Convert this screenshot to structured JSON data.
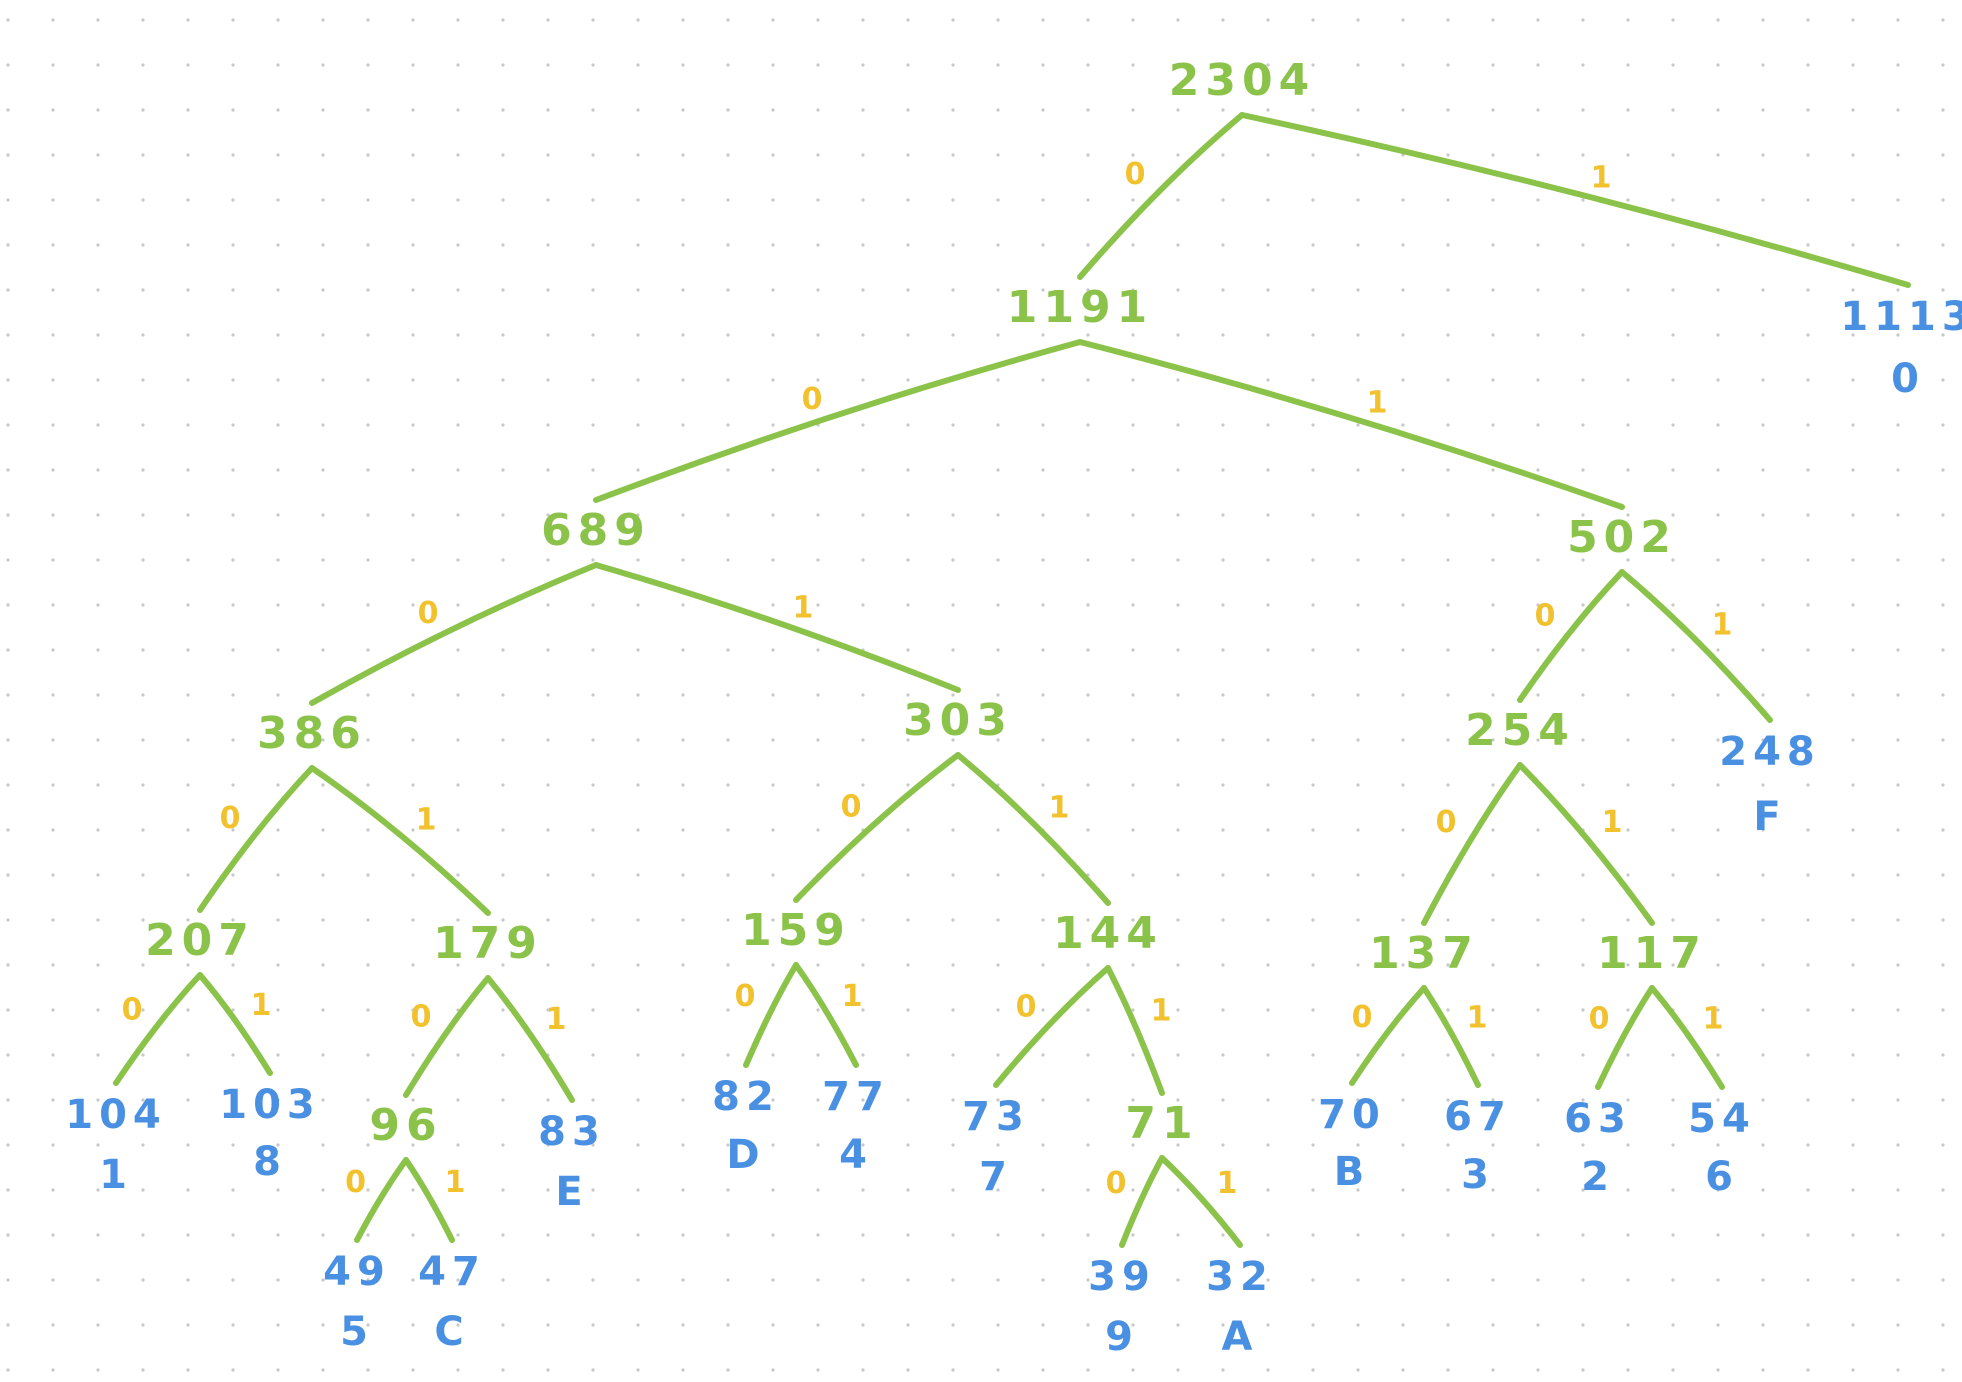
{
  "diagram": {
    "colors": {
      "internal_node": "#8bc34a",
      "leaf": "#4a90e2",
      "edge_bit": "#f2c12e",
      "grid_dot": "#c8c8c8",
      "background": "#ffffff"
    },
    "nodes": [
      {
        "id": "n2304",
        "value": "2304",
        "kind": "internal"
      },
      {
        "id": "n1191",
        "value": "1191",
        "kind": "internal"
      },
      {
        "id": "n1113",
        "value": "1113",
        "symbol": "0",
        "kind": "leaf"
      },
      {
        "id": "n689",
        "value": "689",
        "kind": "internal"
      },
      {
        "id": "n502",
        "value": "502",
        "kind": "internal"
      },
      {
        "id": "n386",
        "value": "386",
        "kind": "internal"
      },
      {
        "id": "n303",
        "value": "303",
        "kind": "internal"
      },
      {
        "id": "n254",
        "value": "254",
        "kind": "internal"
      },
      {
        "id": "n248",
        "value": "248",
        "symbol": "F",
        "kind": "leaf"
      },
      {
        "id": "n207",
        "value": "207",
        "kind": "internal"
      },
      {
        "id": "n179",
        "value": "179",
        "kind": "internal"
      },
      {
        "id": "n159",
        "value": "159",
        "kind": "internal"
      },
      {
        "id": "n144",
        "value": "144",
        "kind": "internal"
      },
      {
        "id": "n137",
        "value": "137",
        "kind": "internal"
      },
      {
        "id": "n117",
        "value": "117",
        "kind": "internal"
      },
      {
        "id": "n104",
        "value": "104",
        "symbol": "1",
        "kind": "leaf"
      },
      {
        "id": "n103",
        "value": "103",
        "symbol": "8",
        "kind": "leaf"
      },
      {
        "id": "n96",
        "value": "96",
        "kind": "internal"
      },
      {
        "id": "n83",
        "value": "83",
        "symbol": "E",
        "kind": "leaf"
      },
      {
        "id": "n82",
        "value": "82",
        "symbol": "D",
        "kind": "leaf"
      },
      {
        "id": "n77",
        "value": "77",
        "symbol": "4",
        "kind": "leaf"
      },
      {
        "id": "n73",
        "value": "73",
        "symbol": "7",
        "kind": "leaf"
      },
      {
        "id": "n71",
        "value": "71",
        "kind": "internal"
      },
      {
        "id": "n70",
        "value": "70",
        "symbol": "B",
        "kind": "leaf"
      },
      {
        "id": "n67",
        "value": "67",
        "symbol": "3",
        "kind": "leaf"
      },
      {
        "id": "n63",
        "value": "63",
        "symbol": "2",
        "kind": "leaf"
      },
      {
        "id": "n54",
        "value": "54",
        "symbol": "6",
        "kind": "leaf"
      },
      {
        "id": "n49",
        "value": "49",
        "symbol": "5",
        "kind": "leaf"
      },
      {
        "id": "n47",
        "value": "47",
        "symbol": "C",
        "kind": "leaf"
      },
      {
        "id": "n39",
        "value": "39",
        "symbol": "9",
        "kind": "leaf"
      },
      {
        "id": "n32",
        "value": "32",
        "symbol": "A",
        "kind": "leaf"
      }
    ],
    "edges": [
      {
        "from": "n2304",
        "to": "n1191",
        "bit": "0"
      },
      {
        "from": "n2304",
        "to": "n1113",
        "bit": "1"
      },
      {
        "from": "n1191",
        "to": "n689",
        "bit": "0"
      },
      {
        "from": "n1191",
        "to": "n502",
        "bit": "1"
      },
      {
        "from": "n689",
        "to": "n386",
        "bit": "0"
      },
      {
        "from": "n689",
        "to": "n303",
        "bit": "1"
      },
      {
        "from": "n502",
        "to": "n254",
        "bit": "0"
      },
      {
        "from": "n502",
        "to": "n248",
        "bit": "1"
      },
      {
        "from": "n386",
        "to": "n207",
        "bit": "0"
      },
      {
        "from": "n386",
        "to": "n179",
        "bit": "1"
      },
      {
        "from": "n303",
        "to": "n159",
        "bit": "0"
      },
      {
        "from": "n303",
        "to": "n144",
        "bit": "1"
      },
      {
        "from": "n254",
        "to": "n137",
        "bit": "0"
      },
      {
        "from": "n254",
        "to": "n117",
        "bit": "1"
      },
      {
        "from": "n207",
        "to": "n104",
        "bit": "0"
      },
      {
        "from": "n207",
        "to": "n103",
        "bit": "1"
      },
      {
        "from": "n179",
        "to": "n96",
        "bit": "0"
      },
      {
        "from": "n179",
        "to": "n83",
        "bit": "1"
      },
      {
        "from": "n159",
        "to": "n82",
        "bit": "0"
      },
      {
        "from": "n159",
        "to": "n77",
        "bit": "1"
      },
      {
        "from": "n144",
        "to": "n73",
        "bit": "0"
      },
      {
        "from": "n144",
        "to": "n71",
        "bit": "1"
      },
      {
        "from": "n137",
        "to": "n70",
        "bit": "0"
      },
      {
        "from": "n137",
        "to": "n67",
        "bit": "1"
      },
      {
        "from": "n117",
        "to": "n63",
        "bit": "0"
      },
      {
        "from": "n117",
        "to": "n54",
        "bit": "1"
      },
      {
        "from": "n96",
        "to": "n49",
        "bit": "0"
      },
      {
        "from": "n96",
        "to": "n47",
        "bit": "1"
      },
      {
        "from": "n71",
        "to": "n39",
        "bit": "0"
      },
      {
        "from": "n71",
        "to": "n32",
        "bit": "1"
      }
    ]
  }
}
